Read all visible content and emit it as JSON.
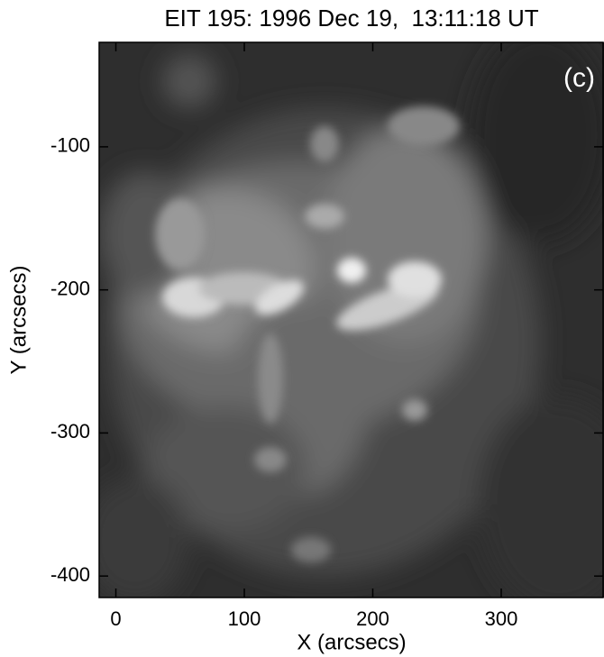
{
  "chart_data": {
    "type": "image",
    "title": "EIT 195: 1996 Dec 19,  13:11:18 UT",
    "annotation": "(c)",
    "x_label": "X (arcsecs)",
    "y_label": "Y (arcsecs)",
    "xlim": [
      -13,
      380
    ],
    "xticks": [
      0,
      100,
      200,
      300
    ],
    "ylim": [
      -415,
      -27
    ],
    "yticks": [
      -100,
      -200,
      -300,
      -400
    ]
  }
}
